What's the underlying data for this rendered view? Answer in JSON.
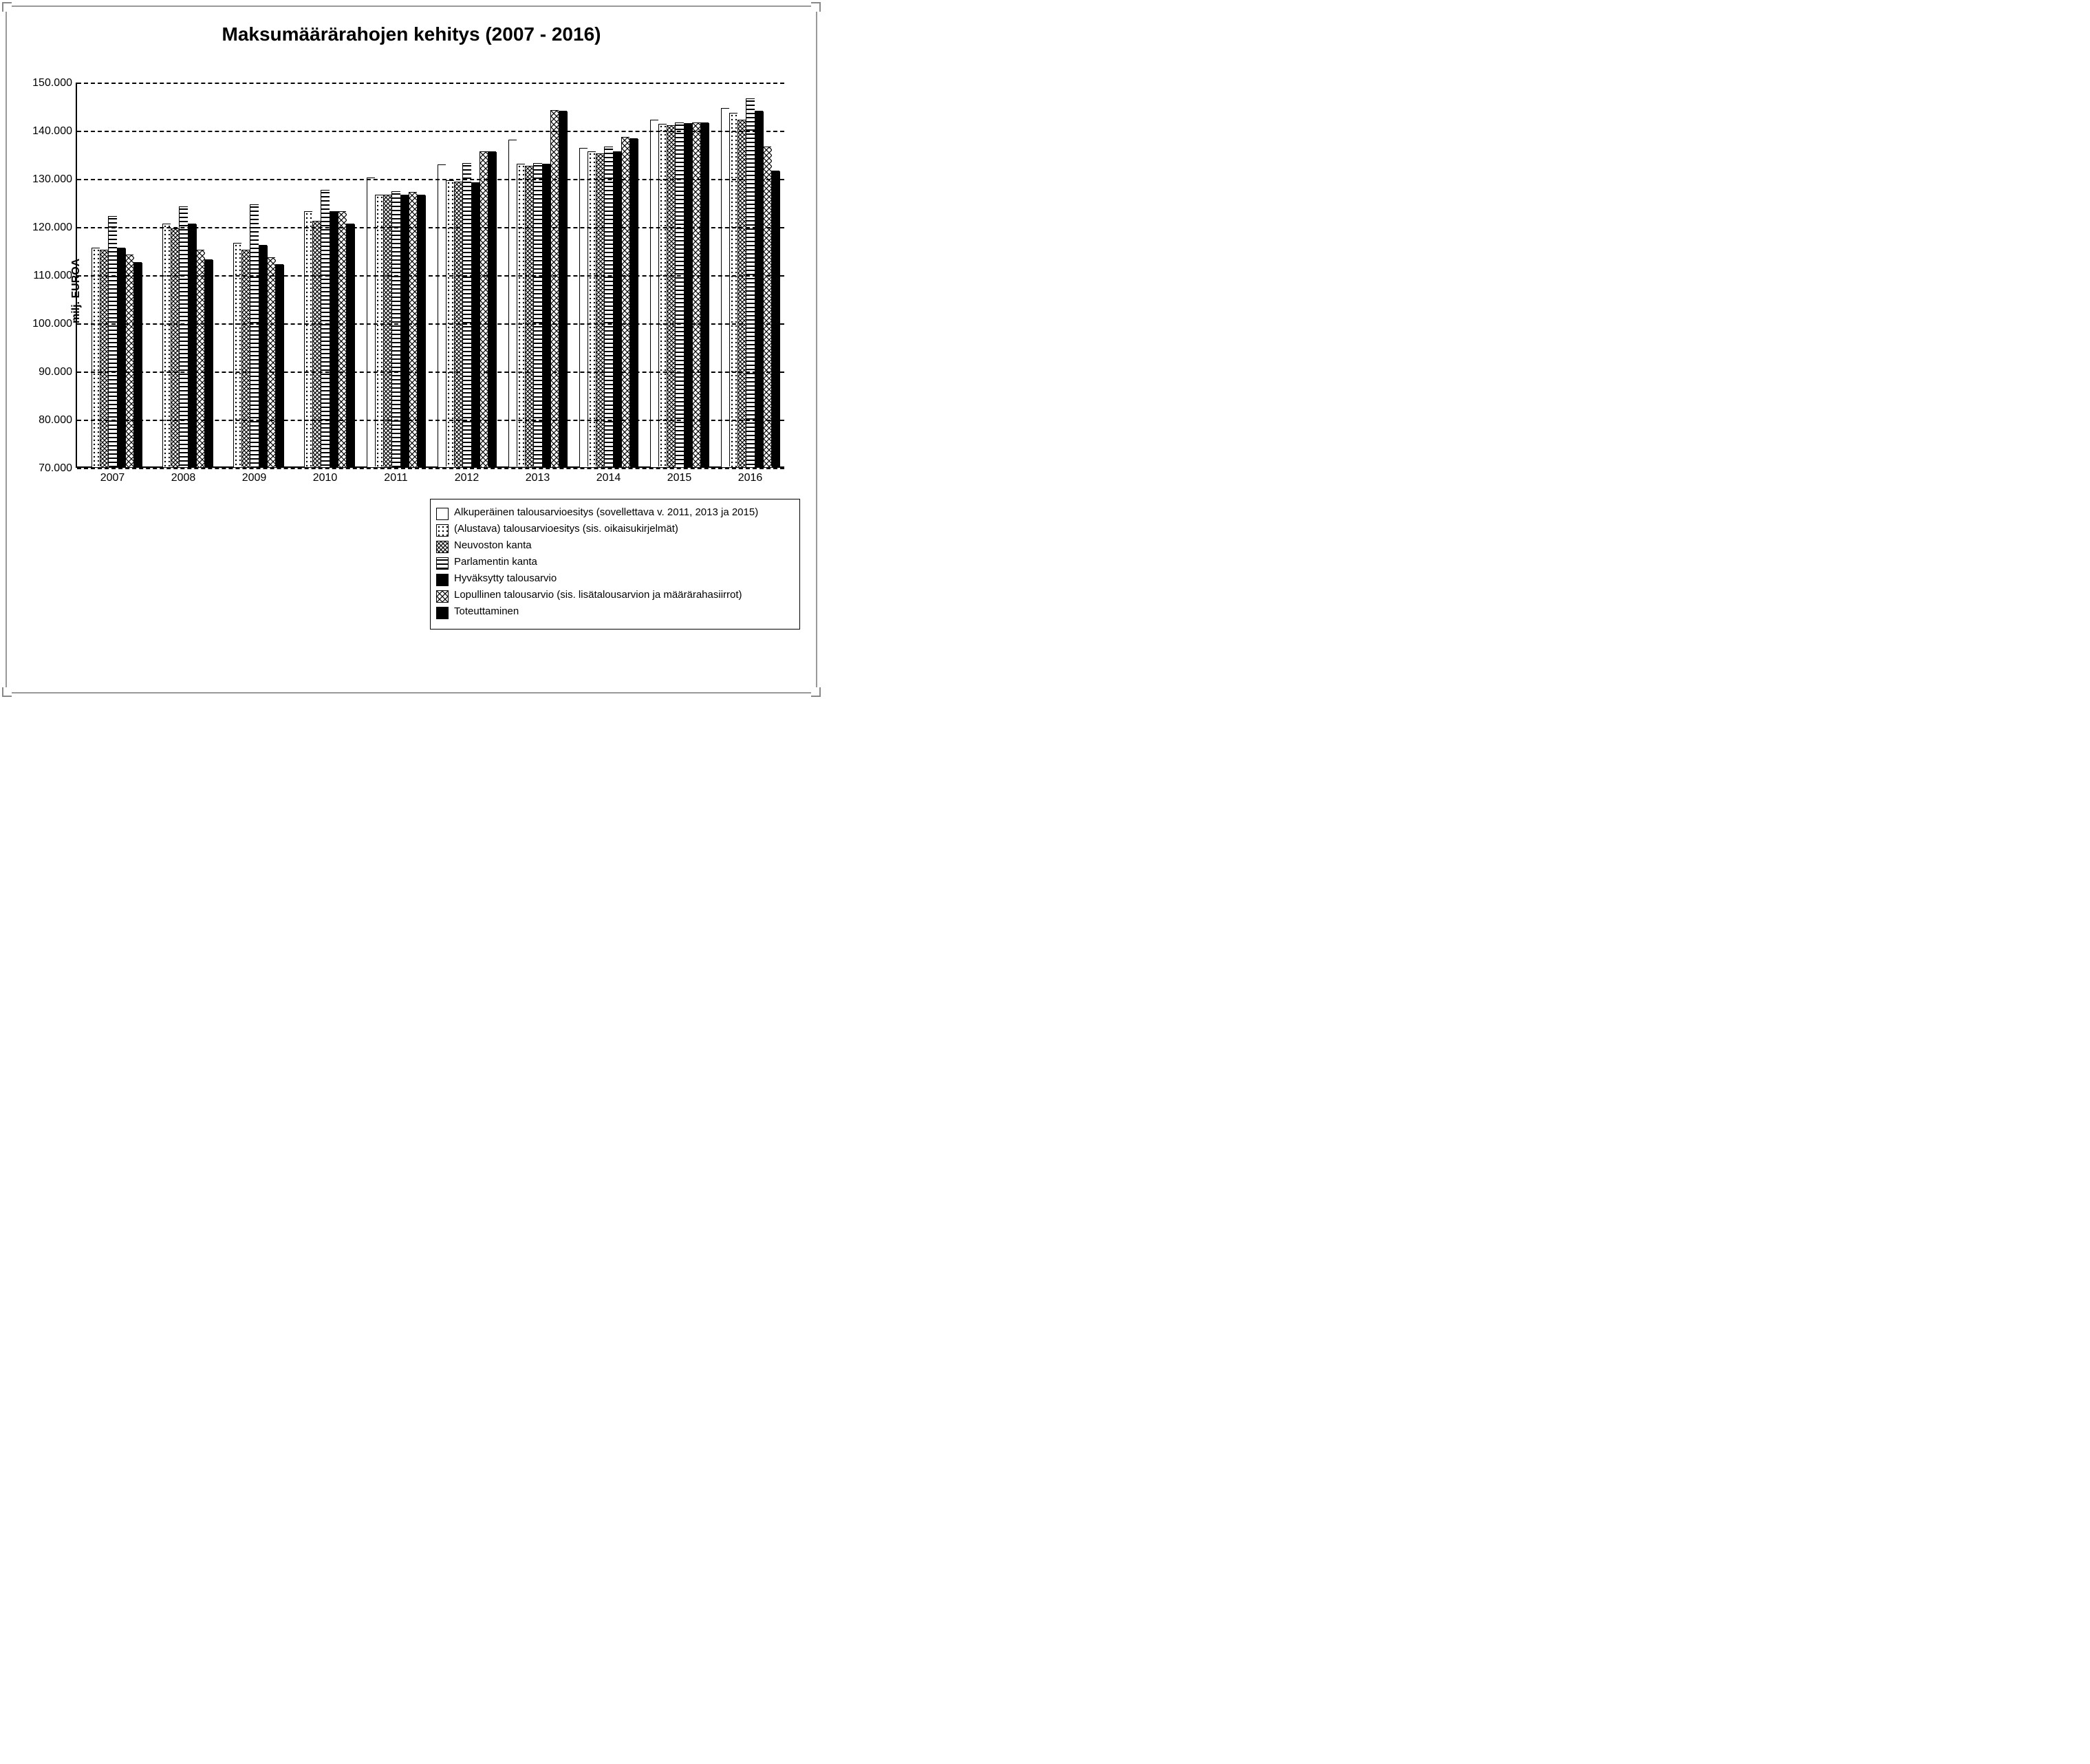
{
  "chart": {
    "type": "bar-grouped",
    "title": "Maksumäärärahojen kehitys (2007 - 2016)",
    "title_fontsize": 28,
    "title_fontweight": "bold",
    "ylabel": "milj. EUROA",
    "ylabel_fontsize": 16,
    "ylabel_fontweight": "bold",
    "ylim": [
      70000,
      150000
    ],
    "ytick_step": 10000,
    "yticks": [
      70000,
      80000,
      90000,
      100000,
      110000,
      120000,
      130000,
      140000,
      150000
    ],
    "ytick_labels": [
      "70.000",
      "80.000",
      "90.000",
      "100.000",
      "110.000",
      "120.000",
      "130.000",
      "140.000",
      "150.000"
    ],
    "grid_style": "dashed",
    "grid_color": "#000000",
    "axis_color": "#000000",
    "background_color": "#ffffff",
    "categories": [
      "2007",
      "2008",
      "2009",
      "2010",
      "2011",
      "2012",
      "2013",
      "2014",
      "2015",
      "2016"
    ],
    "series": [
      {
        "id": "s1",
        "label": "Alkuperäinen talousarvioesitys (sovellettava v. 2011, 2013 ja 2015)",
        "pattern": "blank",
        "color": "#ffffff"
      },
      {
        "id": "s2",
        "label": "(Alustava) talousarvioesitys (sis. oikaisukirjelmät)",
        "pattern": "dots",
        "color": "#000000"
      },
      {
        "id": "s3",
        "label": "Neuvoston kanta",
        "pattern": "crosshatch",
        "color": "#000000"
      },
      {
        "id": "s4",
        "label": "Parlamentin kanta",
        "pattern": "hstripes",
        "color": "#000000"
      },
      {
        "id": "s5",
        "label": "Hyväksytty talousarvio",
        "pattern": "solid",
        "color": "#000000"
      },
      {
        "id": "s6",
        "label": "Lopullinen talousarvio (sis. lisätalousarvion ja määrärahasiirrot)",
        "pattern": "diagcross",
        "color": "#000000"
      },
      {
        "id": "s7",
        "label": "Toteuttaminen",
        "pattern": "solid",
        "color": "#000000"
      }
    ],
    "data": {
      "2007": [
        null,
        115500,
        115000,
        122000,
        115500,
        114000,
        112500
      ],
      "2008": [
        null,
        120500,
        119500,
        124000,
        120500,
        115000,
        113000
      ],
      "2009": [
        null,
        116500,
        115000,
        124500,
        116000,
        113500,
        112000
      ],
      "2010": [
        null,
        123000,
        121000,
        127500,
        123000,
        123000,
        120500
      ],
      "2011": [
        130000,
        126500,
        126500,
        127200,
        126500,
        127000,
        126500
      ],
      "2012": [
        132700,
        129500,
        129200,
        133000,
        129000,
        135500,
        135500
      ],
      "2013": [
        137800,
        132800,
        132500,
        133000,
        132800,
        144000,
        143800
      ],
      "2014": [
        136200,
        135500,
        135000,
        136500,
        135500,
        138500,
        138200
      ],
      "2015": [
        142000,
        141200,
        140800,
        141500,
        141300,
        141500,
        141500
      ],
      "2016": [
        144500,
        143500,
        142000,
        146500,
        143800,
        136500,
        131500
      ]
    },
    "bar_group_width_ratio": 0.82,
    "bar_border_color": "#000000",
    "bar_border_width": 1.5,
    "label_fontsize": 16,
    "frame_border_color": "#999999"
  }
}
